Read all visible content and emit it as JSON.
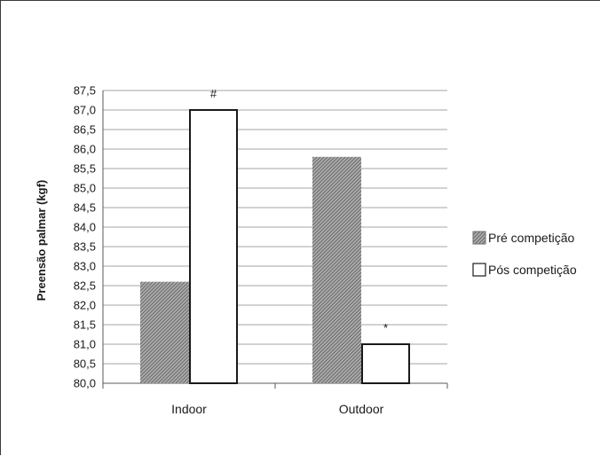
{
  "chart_data": {
    "type": "bar",
    "categories": [
      "Indoor",
      "Outdoor"
    ],
    "series": [
      {
        "name": "Pré competição",
        "values": [
          82.6,
          85.8
        ],
        "style": "hatched",
        "color": "#8c8c8c"
      },
      {
        "name": "Pós competição",
        "values": [
          87.0,
          81.0
        ],
        "style": "white",
        "color": "#ffffff"
      }
    ],
    "annotations": [
      {
        "category": "Indoor",
        "series": "Pós competição",
        "text": "#"
      },
      {
        "category": "Outdoor",
        "series": "Pós competição",
        "text": "*"
      }
    ],
    "ylabel": "Preensão palmar (kgf)",
    "xlabel": "",
    "ylim": [
      80.0,
      87.5
    ],
    "ytick_step": 0.5,
    "grid": true,
    "legend_position": "right"
  }
}
